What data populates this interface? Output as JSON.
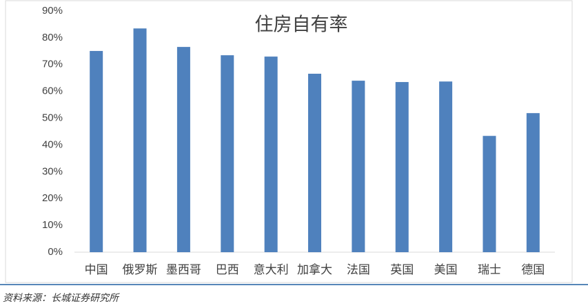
{
  "chart_data": {
    "type": "bar",
    "title": "住房自有率",
    "categories": [
      "中国",
      "俄罗斯",
      "墨西哥",
      "巴西",
      "意大利",
      "加拿大",
      "法国",
      "英国",
      "美国",
      "瑞士",
      "德国"
    ],
    "values": [
      75.1,
      83.5,
      76.6,
      73.5,
      73.0,
      66.6,
      64.0,
      63.5,
      63.7,
      43.4,
      51.9
    ],
    "color": "#4f81bd",
    "ylim": [
      0,
      90
    ],
    "yticks": [
      {
        "value": 0,
        "label": "0%"
      },
      {
        "value": 10,
        "label": "10%"
      },
      {
        "value": 20,
        "label": "20%"
      },
      {
        "value": 30,
        "label": "30%"
      },
      {
        "value": 40,
        "label": "40%"
      },
      {
        "value": 50,
        "label": "50%"
      },
      {
        "value": 60,
        "label": "60%"
      },
      {
        "value": 70,
        "label": "70%"
      },
      {
        "value": 80,
        "label": "80%"
      },
      {
        "value": 90,
        "label": "90%"
      }
    ],
    "grid": false,
    "source": "资料来源：长城证券研究所"
  }
}
